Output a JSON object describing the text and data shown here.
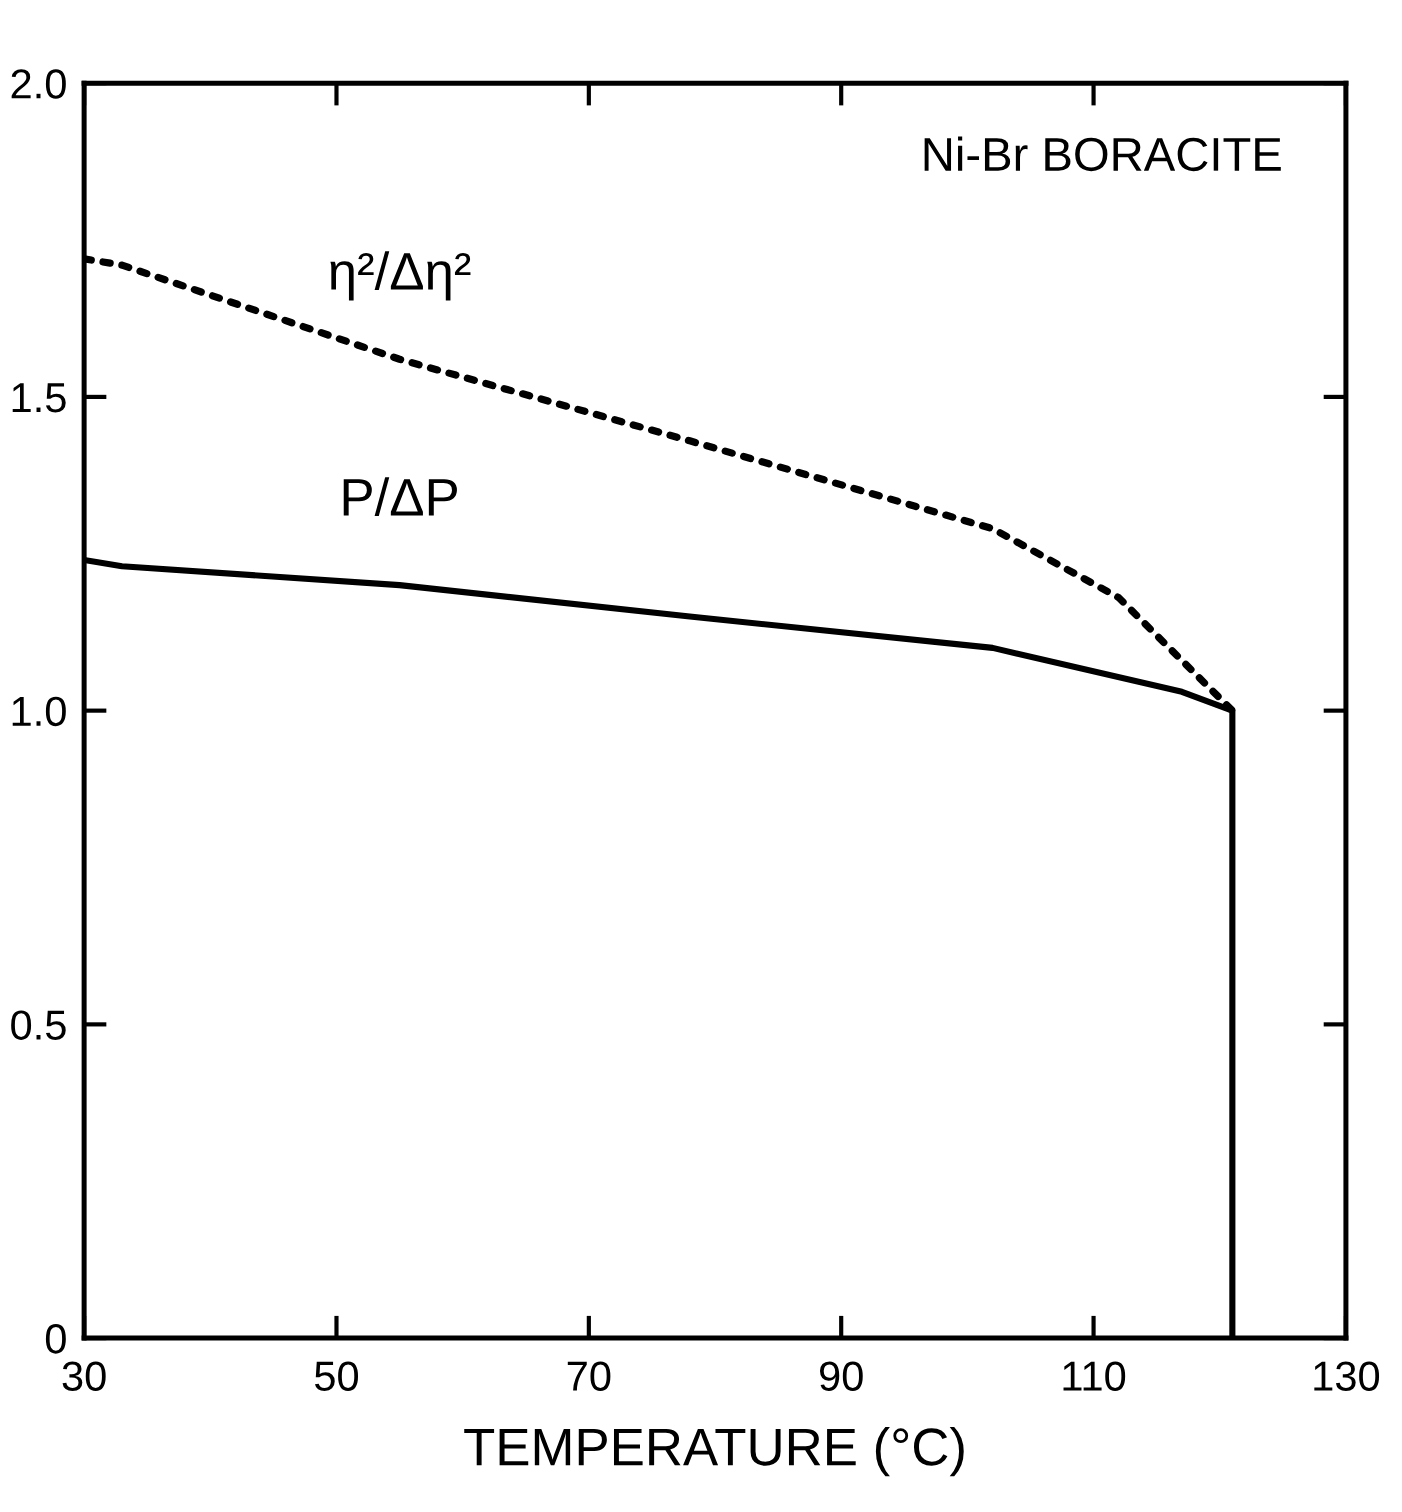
{
  "chart_data": {
    "type": "line",
    "xlabel": "TEMPERATURE (°C)",
    "series": [
      {
        "name": "η²/Δη²",
        "color": "#000000",
        "line_style": "dotted",
        "x": [
          30,
          33,
          55,
          78,
          102,
          112,
          121
        ],
        "values": [
          1.72,
          1.71,
          1.56,
          1.43,
          1.29,
          1.18,
          1.0
        ]
      },
      {
        "name": "P/ΔP",
        "color": "#000000",
        "line_style": "solid",
        "x": [
          30,
          33,
          55,
          78,
          102,
          117,
          121,
          121
        ],
        "values": [
          1.24,
          1.23,
          1.2,
          1.15,
          1.1,
          1.03,
          1.0,
          0
        ]
      }
    ],
    "annotations": [
      "Ni-Br BORACITE"
    ],
    "xlim": [
      30,
      130
    ],
    "ylim": [
      0,
      2.0
    ],
    "xticks": [
      30,
      50,
      70,
      90,
      110,
      130
    ],
    "yticks": [
      0,
      0.5,
      {
        "value": 1.0,
        "label": "1.0"
      },
      1.5,
      {
        "value": 2.0,
        "label": "2.0"
      }
    ],
    "grid": false,
    "legend": false,
    "marker": "none"
  }
}
